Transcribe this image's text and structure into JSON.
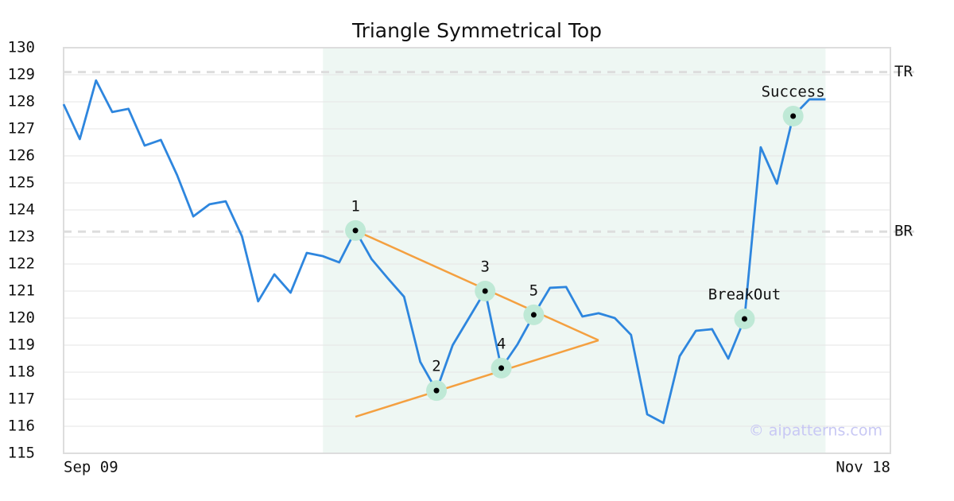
{
  "chart_data": {
    "type": "line",
    "title": "Triangle Symmetrical Top",
    "categories": [
      "Sep 09",
      null,
      null,
      null,
      null,
      null,
      null,
      null,
      null,
      null,
      null,
      null,
      null,
      null,
      null,
      null,
      null,
      null,
      null,
      null,
      null,
      null,
      null,
      null,
      null,
      null,
      null,
      null,
      null,
      null,
      null,
      null,
      null,
      null,
      null,
      null,
      null,
      null,
      null,
      null,
      null,
      null,
      null,
      null,
      null,
      null,
      null,
      null,
      null,
      null,
      null,
      "Nov 18"
    ],
    "series": [
      {
        "color": "#2e86de",
        "values": [
          127.91,
          126.62,
          128.79,
          127.62,
          127.74,
          126.38,
          126.59,
          125.29,
          123.76,
          124.21,
          124.32,
          123.03,
          120.62,
          121.62,
          120.94,
          122.41,
          122.29,
          122.06,
          123.24,
          122.18,
          121.47,
          120.79,
          118.38,
          117.32,
          119.0,
          120.0,
          121.0,
          118.15,
          119.03,
          120.12,
          121.12,
          121.15,
          120.06,
          120.18,
          120.0,
          119.38,
          116.44,
          116.12,
          118.59,
          119.53,
          119.59,
          118.5,
          119.97,
          126.32,
          124.97,
          127.47,
          128.09,
          128.09,
          null,
          null,
          null,
          null
        ]
      }
    ],
    "ylim": [
      115,
      130
    ],
    "yticks": [
      115,
      116,
      117,
      118,
      119,
      120,
      121,
      122,
      123,
      124,
      125,
      126,
      127,
      128,
      129,
      130
    ],
    "grid": true,
    "shade": [
      16,
      47
    ],
    "reference_lines": [
      {
        "label": "TR",
        "value": 129.1
      },
      {
        "label": "BR",
        "value": 123.2
      }
    ],
    "points": [
      {
        "label": "1",
        "index": 18
      },
      {
        "label": "2",
        "index": 23
      },
      {
        "label": "3",
        "index": 26
      },
      {
        "label": "4",
        "index": 27
      },
      {
        "label": "5",
        "index": 29
      },
      {
        "label": "BreakOut",
        "index": 42
      },
      {
        "label": "Success",
        "index": 45
      }
    ],
    "trend_lines": [
      {
        "color": "#f4a040",
        "points": [
          [
            18,
            123.24
          ],
          [
            33,
            119.18
          ]
        ]
      },
      {
        "color": "#f4a040",
        "points": [
          [
            18,
            116.35
          ],
          [
            33,
            119.18
          ]
        ]
      }
    ],
    "watermark": "© aipatterns.com"
  }
}
